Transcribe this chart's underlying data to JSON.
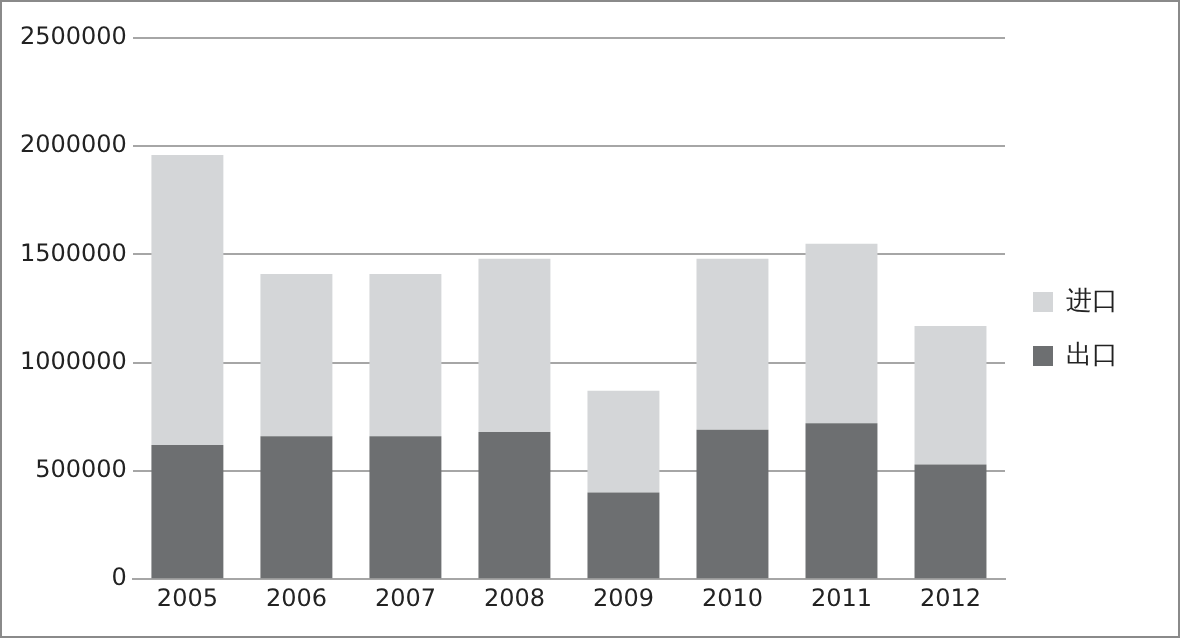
{
  "chart_data": {
    "type": "bar",
    "stacked": true,
    "categories": [
      "2005",
      "2006",
      "2007",
      "2008",
      "2009",
      "2010",
      "2011",
      "2012"
    ],
    "series": [
      {
        "name": "出口",
        "color": "#6d6f71",
        "values": [
          620000,
          660000,
          660000,
          680000,
          400000,
          690000,
          720000,
          530000
        ]
      },
      {
        "name": "进口",
        "color": "#d4d6d8",
        "values": [
          1340000,
          750000,
          750000,
          800000,
          470000,
          790000,
          830000,
          640000
        ]
      }
    ],
    "ylim": [
      0,
      2500000
    ],
    "yticks": [
      0,
      500000,
      1000000,
      1500000,
      2000000,
      2500000
    ],
    "grid": "y",
    "legend": "right"
  }
}
